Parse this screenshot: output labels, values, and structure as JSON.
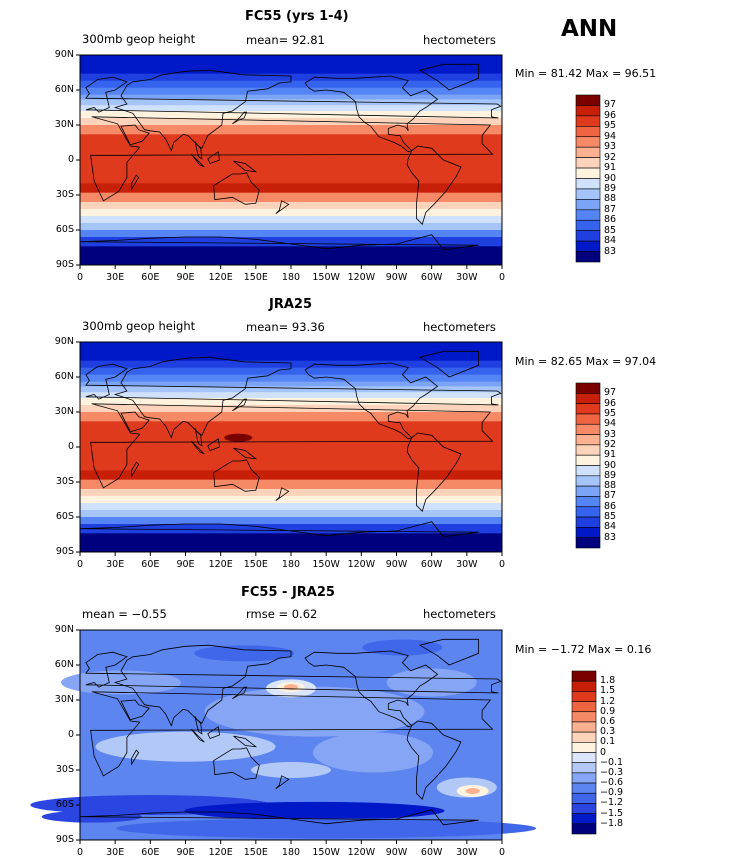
{
  "season": "ANN",
  "lat_labels": [
    "90N",
    "60N",
    "30N",
    "0",
    "30S",
    "60S",
    "90S"
  ],
  "lon_labels": [
    "0",
    "30E",
    "60E",
    "90E",
    "120E",
    "150E",
    "180",
    "150W",
    "120W",
    "90W",
    "60W",
    "30W",
    "0"
  ],
  "colors": {
    "abs": [
      "#00007f",
      "#0019c8",
      "#1f3fe0",
      "#3563ee",
      "#5584f4",
      "#7ba4f7",
      "#a5c4f9",
      "#cfe1fb",
      "#fff2df",
      "#fdd4bb",
      "#fbb08f",
      "#f78a66",
      "#ef6441",
      "#e03a1e",
      "#c82008",
      "#7a0000"
    ],
    "diff": [
      "#00007f",
      "#0019c8",
      "#2a45e0",
      "#4066ea",
      "#5d85f0",
      "#86a6f5",
      "#b2c9f8",
      "#dbe6fb",
      "#fff2df",
      "#fdd4bb",
      "#fbb08f",
      "#f78a66",
      "#ef6441",
      "#e03a1e",
      "#c82008",
      "#7a0000"
    ]
  },
  "panels": [
    {
      "title": "FC55 (yrs 1-4)",
      "left_label": "300mb geop height",
      "center_label": "mean=  92.81",
      "units": "hectometers",
      "stats": "Min =  81.42 Max =  96.51",
      "colorbar_labels": [
        "97",
        "96",
        "95",
        "94",
        "93",
        "92",
        "91",
        "90",
        "89",
        "88",
        "87",
        "86",
        "85",
        "84",
        "83"
      ]
    },
    {
      "title": "JRA25",
      "left_label": "300mb geop height",
      "center_label": "mean=  93.36",
      "units": "hectometers",
      "stats": "Min =  82.65 Max =  97.04",
      "colorbar_labels": [
        "97",
        "96",
        "95",
        "94",
        "93",
        "92",
        "91",
        "90",
        "89",
        "88",
        "87",
        "86",
        "85",
        "84",
        "83"
      ]
    },
    {
      "title": "FC55 - JRA25",
      "left_label": "mean =  −0.55",
      "center_label": "rmse =   0.62",
      "units": "hectometers",
      "stats": "Min =  −1.72 Max =   0.16",
      "colorbar_labels": [
        "1.8",
        "1.5",
        "1.2",
        "0.9",
        "0.6",
        "0.3",
        "0.1",
        "0",
        "−0.1",
        "−0.3",
        "−0.6",
        "−0.9",
        "−1.2",
        "−1.5",
        "−1.8"
      ]
    }
  ]
}
